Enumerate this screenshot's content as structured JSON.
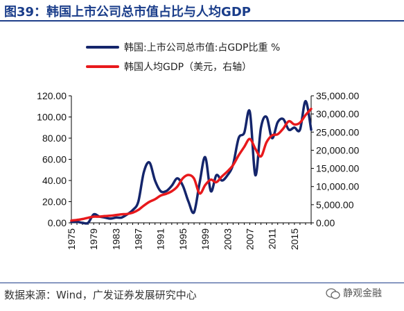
{
  "title": "图39：韩国上市公司总市值占比与人均GDP",
  "source": "数据来源：Wind，广发证券发展研究中心",
  "watermark": "静观金融",
  "colors": {
    "title": "#1a3d8a",
    "series1": "#14256b",
    "series2": "#e8191c"
  },
  "chart_data": {
    "type": "line",
    "title": "",
    "xlabel": "",
    "ylabel": "",
    "x": [
      1975,
      1976,
      1977,
      1978,
      1979,
      1980,
      1981,
      1982,
      1983,
      1984,
      1985,
      1986,
      1987,
      1988,
      1989,
      1990,
      1991,
      1992,
      1993,
      1994,
      1995,
      1996,
      1997,
      1998,
      1999,
      2000,
      2001,
      2002,
      2003,
      2004,
      2005,
      2006,
      2007,
      2008,
      2009,
      2010,
      2011,
      2012,
      2013,
      2014,
      2015,
      2016,
      2017,
      2018
    ],
    "x_ticks": [
      "1975",
      "1979",
      "1983",
      "1987",
      "1991",
      "1995",
      "1999",
      "2003",
      "2007",
      "2011",
      "2015"
    ],
    "y_left": {
      "range": [
        0,
        120
      ],
      "ticks": [
        "0.00",
        "20.00",
        "40.00",
        "60.00",
        "80.00",
        "100.00",
        "120.00"
      ]
    },
    "y_right": {
      "range": [
        0,
        35000
      ],
      "ticks": [
        "0.00",
        "5,000.00",
        "10,000.00",
        "15,000.00",
        "20,000.00",
        "25,000.00",
        "30,000.00",
        "35,000.00"
      ]
    },
    "legend_position": "top",
    "series": [
      {
        "name": "韩国:上市公司总市值:占GDP比重 %",
        "axis": "left",
        "values": [
          1,
          1,
          0,
          0,
          8,
          6,
          5,
          4,
          5,
          5,
          8,
          12,
          20,
          48,
          57,
          40,
          30,
          30,
          35,
          42,
          35,
          20,
          10,
          38,
          62,
          30,
          45,
          40,
          45,
          55,
          80,
          85,
          105,
          45,
          90,
          100,
          80,
          95,
          98,
          88,
          90,
          88,
          115,
          88
        ]
      },
      {
        "name": "韩国人均GDP（美元，右轴）",
        "axis": "right",
        "values": [
          640,
          800,
          1050,
          1400,
          1700,
          1700,
          1850,
          1950,
          2150,
          2350,
          2450,
          2800,
          3550,
          4750,
          5800,
          6500,
          7500,
          8000,
          8700,
          10000,
          12300,
          13200,
          12200,
          8100,
          10400,
          11900,
          11200,
          12800,
          14200,
          15900,
          18600,
          20900,
          23100,
          20400,
          18300,
          22200,
          24100,
          24400,
          26000,
          28000,
          27100,
          27600,
          29700,
          31400
        ]
      }
    ]
  }
}
